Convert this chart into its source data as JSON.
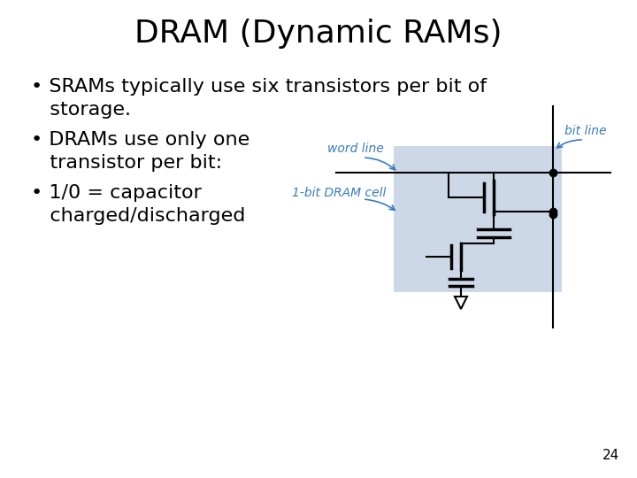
{
  "title": "DRAM (Dynamic RAMs)",
  "bullet1_line1": "• SRAMs typically use six transistors per bit of",
  "bullet1_line2": "   storage.",
  "bullet2_line1": "• DRAMs use only one",
  "bullet2_line2": "   transistor per bit:",
  "bullet3_line1": "• 1/0 = capacitor",
  "bullet3_line2": "   charged/discharged",
  "label_bit_line": "bit line",
  "label_word_line": "word line",
  "label_cell": "1-bit DRAM cell",
  "page_number": "24",
  "background_color": "#ffffff",
  "text_color": "#000000",
  "blue_color": "#3a7bbf",
  "diagram_bg": "#ccd8e8",
  "title_fontsize": 26,
  "body_fontsize": 16,
  "label_fontsize": 10
}
